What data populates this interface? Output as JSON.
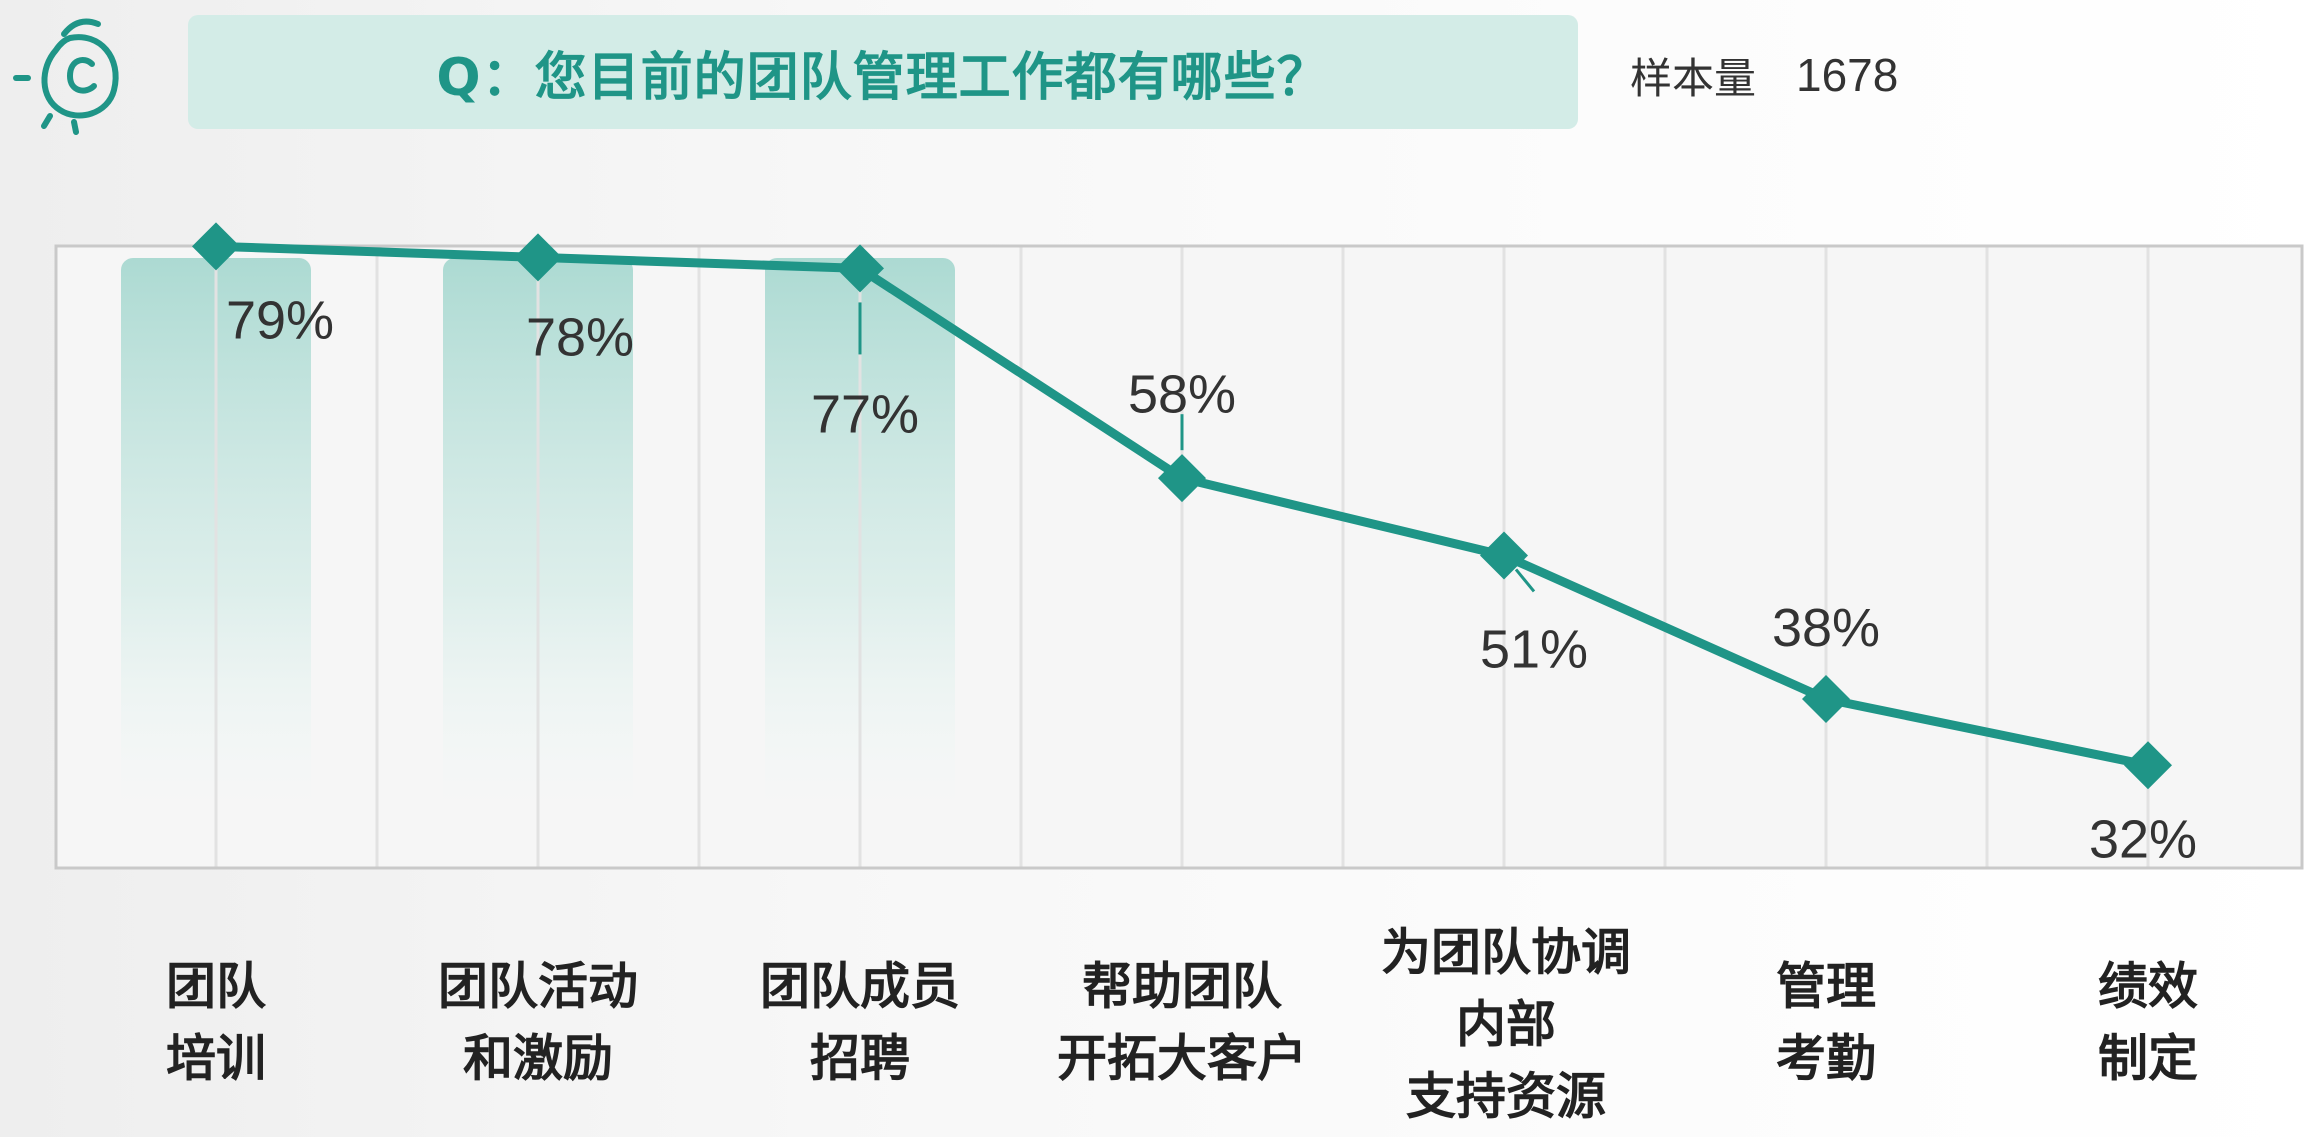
{
  "header": {
    "question": "Q：您目前的团队管理工作都有哪些？",
    "sample_label": "样本量",
    "sample_value": "1678"
  },
  "logo": {
    "icon": "avocado-c-logo-icon",
    "color": "#1f9587"
  },
  "colors": {
    "accent": "#1f9587",
    "title_bg": "#d3ece7",
    "highlight": "#9fd5cc"
  },
  "chart_data": {
    "type": "line",
    "categories": [
      [
        "团队",
        "培训"
      ],
      [
        "团队活动",
        "和激励"
      ],
      [
        "团队成员",
        "招聘"
      ],
      [
        "帮助团队",
        "开拓大客户"
      ],
      [
        "为团队协调",
        "内部",
        "支持资源"
      ],
      [
        "管理",
        "考勤"
      ],
      [
        "绩效",
        "制定"
      ]
    ],
    "values": [
      79,
      78,
      77,
      58,
      51,
      38,
      32
    ],
    "value_labels": [
      "79%",
      "78%",
      "77%",
      "58%",
      "51%",
      "38%",
      "32%"
    ],
    "ylim": [
      0,
      100
    ],
    "highlighted": [
      0,
      1,
      2
    ],
    "grid": true,
    "marker": "diamond"
  }
}
